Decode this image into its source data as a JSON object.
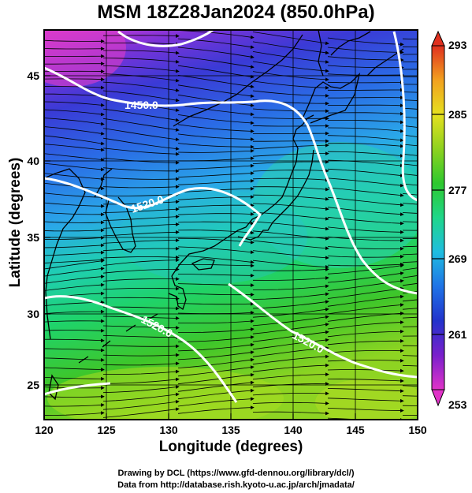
{
  "title": "MSM 18Z28Jan2024 (850.0hPa)",
  "xlabel": "Longitude (degrees)",
  "ylabel": "Latitude  (degrees)",
  "credits": [
    "Drawing by DCL (https://www.gfd-dennou.org/library/dcl/)",
    "Data from http://database.rish.kyoto-u.ac.jp/arch/jmadata/"
  ],
  "map": {
    "lon_range": [
      120,
      150
    ],
    "lat_range": [
      22.4,
      47.6
    ],
    "x_ticks": [
      "120",
      "125",
      "130",
      "135",
      "140",
      "145",
      "150"
    ],
    "y_ticks": [
      "25",
      "30",
      "35",
      "40",
      "45"
    ],
    "colorbar": {
      "range": [
        253,
        293
      ],
      "ticks": [
        "253",
        "261",
        "269",
        "277",
        "285",
        "293"
      ],
      "colors": [
        "#e033c8",
        "#7a1fcc",
        "#2233cc",
        "#1f73e6",
        "#1fbde0",
        "#1fd68a",
        "#2ec82e",
        "#8ed21f",
        "#e6e01f",
        "#f2a11f",
        "#e0301f"
      ]
    },
    "contour_labels": [
      "1450.0",
      "1520.0",
      "1520.0",
      "1520.0"
    ],
    "field_colors": {
      "north_west": "#d63ad0",
      "north": "#4a33d6",
      "mid": "#2a7bea",
      "sea_japan": "#2fb8e6",
      "south_mid": "#1fcf8a",
      "south": "#46c82a",
      "far_south": "#a2da22"
    }
  }
}
